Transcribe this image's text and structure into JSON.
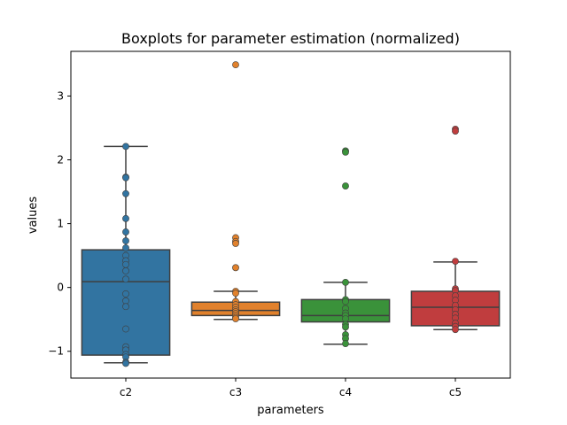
{
  "chart_data": {
    "type": "box",
    "title": "Boxplots for parameter estimation (normalized)",
    "xlabel": "parameters",
    "ylabel": "values",
    "ylim": [
      -1.42,
      3.7
    ],
    "yticks": [
      {
        "value": -1,
        "label": "−1"
      },
      {
        "value": 0,
        "label": "0"
      },
      {
        "value": 1,
        "label": "1"
      },
      {
        "value": 2,
        "label": "2"
      },
      {
        "value": 3,
        "label": "3"
      }
    ],
    "categories": [
      "c2",
      "c3",
      "c4",
      "c5"
    ],
    "boxes": [
      {
        "name": "c2",
        "color": "#3274a1",
        "whisker_low": -1.18,
        "q1": -1.06,
        "median": 0.09,
        "q3": 0.59,
        "whisker_high": 2.21
      },
      {
        "name": "c3",
        "color": "#e1812c",
        "whisker_low": -0.5,
        "q1": -0.44,
        "median": -0.36,
        "q3": -0.23,
        "whisker_high": -0.06
      },
      {
        "name": "c4",
        "color": "#3a923a",
        "whisker_low": -0.89,
        "q1": -0.54,
        "median": -0.44,
        "q3": -0.19,
        "whisker_high": 0.08
      },
      {
        "name": "c5",
        "color": "#c03d3e",
        "whisker_low": -0.66,
        "q1": -0.6,
        "median": -0.31,
        "q3": -0.06,
        "whisker_high": 0.4
      }
    ],
    "points": [
      [
        2.21,
        1.73,
        1.72,
        1.47,
        1.08,
        0.87,
        0.73,
        0.62,
        0.5,
        0.42,
        0.36,
        0.26,
        0.13,
        -0.1,
        -0.21,
        -0.3,
        -0.65,
        -0.93,
        -0.98,
        -1.05,
        -1.09,
        -1.17,
        -1.19
      ],
      [
        3.49,
        0.78,
        0.72,
        0.69,
        0.31,
        -0.06,
        -0.09,
        -0.22,
        -0.27,
        -0.31,
        -0.35,
        -0.38,
        -0.41,
        -0.44,
        -0.47,
        -0.49
      ],
      [
        2.14,
        2.12,
        1.59,
        0.08,
        -0.19,
        -0.22,
        -0.33,
        -0.4,
        -0.44,
        -0.49,
        -0.58,
        -0.62,
        -0.74,
        -0.8,
        -0.88
      ],
      [
        2.48,
        2.45,
        0.41,
        -0.02,
        -0.05,
        -0.13,
        -0.2,
        -0.28,
        -0.35,
        -0.42,
        -0.48,
        -0.56,
        -0.61,
        -0.66
      ]
    ]
  }
}
